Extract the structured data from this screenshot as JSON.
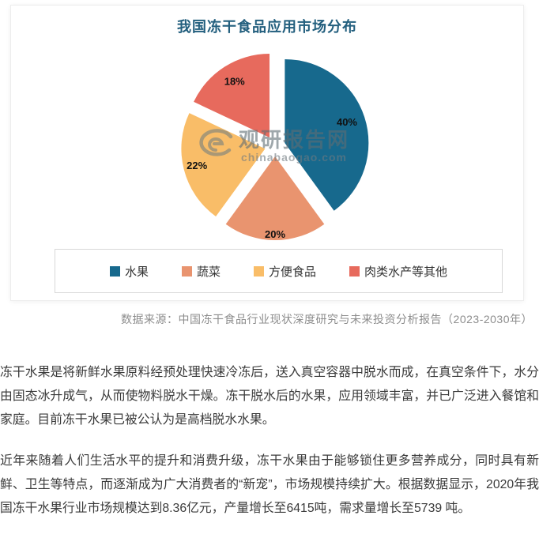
{
  "chart_data": {
    "type": "pie",
    "title": "我国冻干食品应用市场分布",
    "categories": [
      "水果",
      "蔬菜",
      "方便食品",
      "肉类水产等其他"
    ],
    "values": [
      40,
      20,
      22,
      18
    ],
    "labels": [
      "40%",
      "20%",
      "22%",
      "18%"
    ],
    "unit": "%",
    "colors": [
      "#17698d",
      "#e9946f",
      "#f9bd68",
      "#e76a5d"
    ],
    "exploded": true,
    "start_angle_deg": 0,
    "direction": "clockwise",
    "legend_position": "bottom",
    "label_color": "#111111",
    "title_color": "#235f7e"
  },
  "watermark": {
    "brand": "观研报告网",
    "domain": "chinabaogao.com"
  },
  "source_note": "数据来源：中国冻干食品行业现状深度研究与未来投资分析报告（2023-2030年）",
  "article": {
    "paragraphs": [
      "冻干水果是将新鲜水果原料经预处理快速冷冻后，送入真空容器中脱水而成，在真空条件下，水分由固态冰升成气，从而使物料脱水干燥。冻干脱水后的水果，应用领域丰富，并已广泛进入餐馆和家庭。目前冻干水果已被公认为是高档脱水水果。",
      "近年来随着人们生活水平的提升和消费升级，冻干水果由于能够锁住更多营养成分，同时具有新鲜、卫生等特点，而逐渐成为广大消费者的“新宠”，市场规模持续扩大。根据数据显示，2020年我国冻干水果行业市场规模达到8.36亿元，产量增长至6415吨，需求量增长至5739 吨。"
    ]
  }
}
